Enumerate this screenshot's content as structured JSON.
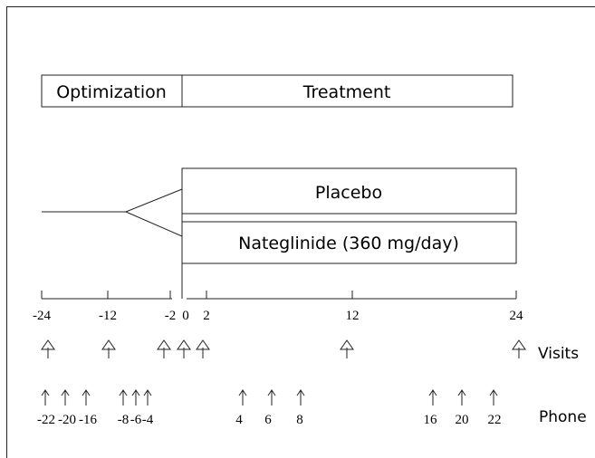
{
  "phases": {
    "optimization": "Optimization",
    "treatment": "Treatment"
  },
  "arms": {
    "placebo": "Placebo",
    "nateglinide": "Nateglinide (360 mg/day)"
  },
  "timeline": {
    "ticks": [
      -24,
      -12,
      -2,
      0,
      2,
      12,
      24
    ]
  },
  "visits": {
    "label": "Visits"
  },
  "phone": {
    "label": "Phone",
    "weeks": [
      -22,
      -20,
      -16,
      -8,
      -6,
      -4,
      4,
      6,
      8,
      16,
      20,
      22
    ]
  }
}
